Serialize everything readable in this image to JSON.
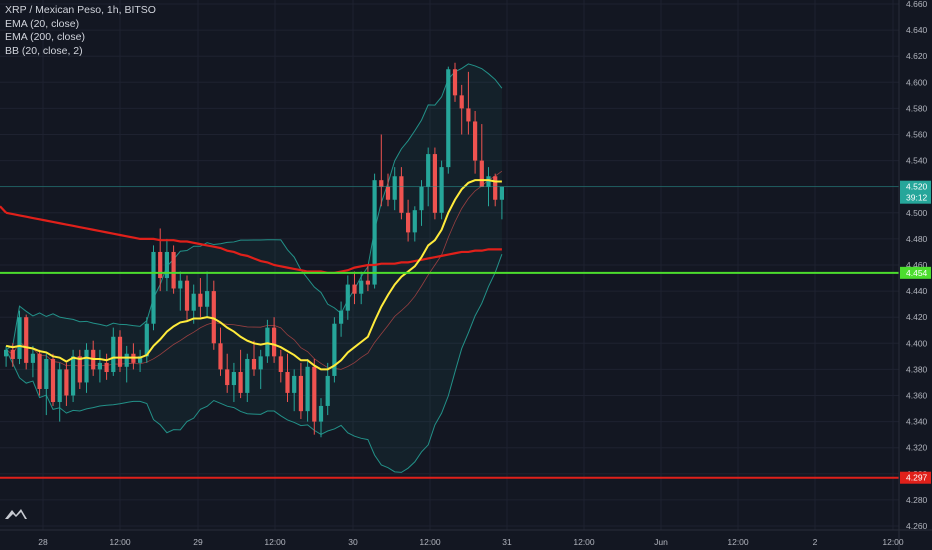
{
  "legend": {
    "symbol": "XRP / Mexican Peso, 1h, BITSO",
    "ema20": "EMA (20, close)",
    "ema200": "EMA (200, close)",
    "bb": "BB (20, close, 2)"
  },
  "colors": {
    "background": "#131722",
    "grid": "#1e2230",
    "up": "#26a69a",
    "down": "#ef5350",
    "ema20": "#ffeb3b",
    "ema200": "#e0201a",
    "bb": "#26a69a",
    "bbFill": "rgba(38,166,154,0.07)",
    "support": "#4cdd2e",
    "lower_level": "#e0201a",
    "axis_text": "#b2b5be",
    "last_price": "#26a69a"
  },
  "chart_data": {
    "type": "candlestick",
    "y_range": [
      4.26,
      4.66
    ],
    "y_ticks": [
      "4.660",
      "4.640",
      "4.620",
      "4.600",
      "4.580",
      "4.560",
      "4.540",
      "4.520",
      "4.500",
      "4.480",
      "4.460",
      "4.440",
      "4.420",
      "4.400",
      "4.380",
      "4.360",
      "4.340",
      "4.320",
      "4.300",
      "4.280",
      "4.260"
    ],
    "x_ticks": [
      "28",
      "12:00",
      "29",
      "12:00",
      "30",
      "12:00",
      "31",
      "12:00",
      "Jun",
      "12:00",
      "2",
      "12:00"
    ],
    "levels": [
      {
        "name": "support",
        "value": 4.454,
        "label": "4.454"
      },
      {
        "name": "lower-level",
        "value": 4.297,
        "label": "4.297"
      }
    ],
    "last_price": {
      "value": 4.52,
      "label": "4.520",
      "countdown": "39:12"
    },
    "candles": [
      [
        4.39,
        4.398,
        4.382,
        4.395
      ],
      [
        4.395,
        4.4,
        4.382,
        4.388
      ],
      [
        4.388,
        4.425,
        4.384,
        4.42
      ],
      [
        4.42,
        4.422,
        4.38,
        4.385
      ],
      [
        4.385,
        4.398,
        4.374,
        4.392
      ],
      [
        4.392,
        4.395,
        4.36,
        4.365
      ],
      [
        4.365,
        4.392,
        4.345,
        4.388
      ],
      [
        4.388,
        4.392,
        4.352,
        4.355
      ],
      [
        4.355,
        4.385,
        4.34,
        4.38
      ],
      [
        4.38,
        4.385,
        4.352,
        4.36
      ],
      [
        4.36,
        4.395,
        4.355,
        4.39
      ],
      [
        4.39,
        4.395,
        4.365,
        4.37
      ],
      [
        4.37,
        4.4,
        4.362,
        4.395
      ],
      [
        4.395,
        4.402,
        4.375,
        4.38
      ],
      [
        4.38,
        4.395,
        4.37,
        4.385
      ],
      [
        4.385,
        4.392,
        4.372,
        4.378
      ],
      [
        4.378,
        4.412,
        4.375,
        4.405
      ],
      [
        4.405,
        4.41,
        4.378,
        4.382
      ],
      [
        4.382,
        4.398,
        4.37,
        4.392
      ],
      [
        4.392,
        4.4,
        4.38,
        4.385
      ],
      [
        4.385,
        4.395,
        4.378,
        4.39
      ],
      [
        4.39,
        4.42,
        4.385,
        4.415
      ],
      [
        4.415,
        4.475,
        4.41,
        4.47
      ],
      [
        4.47,
        4.488,
        4.44,
        4.45
      ],
      [
        4.45,
        4.48,
        4.44,
        4.47
      ],
      [
        4.47,
        4.475,
        4.438,
        4.442
      ],
      [
        4.442,
        4.455,
        4.425,
        4.448
      ],
      [
        4.448,
        4.452,
        4.418,
        4.425
      ],
      [
        4.425,
        4.445,
        4.415,
        4.438
      ],
      [
        4.438,
        4.45,
        4.42,
        4.428
      ],
      [
        4.428,
        4.455,
        4.42,
        4.44
      ],
      [
        4.44,
        4.448,
        4.395,
        4.4
      ],
      [
        4.4,
        4.412,
        4.375,
        4.38
      ],
      [
        4.38,
        4.392,
        4.362,
        4.368
      ],
      [
        4.368,
        4.385,
        4.355,
        4.378
      ],
      [
        4.378,
        4.395,
        4.358,
        4.362
      ],
      [
        4.362,
        4.392,
        4.355,
        4.388
      ],
      [
        4.388,
        4.402,
        4.375,
        4.38
      ],
      [
        4.38,
        4.395,
        4.365,
        4.39
      ],
      [
        4.39,
        4.418,
        4.385,
        4.412
      ],
      [
        4.412,
        4.42,
        4.385,
        4.39
      ],
      [
        4.39,
        4.395,
        4.37,
        4.378
      ],
      [
        4.378,
        4.392,
        4.355,
        4.362
      ],
      [
        4.362,
        4.38,
        4.348,
        4.375
      ],
      [
        4.375,
        4.385,
        4.342,
        4.348
      ],
      [
        4.348,
        4.388,
        4.34,
        4.382
      ],
      [
        4.382,
        4.388,
        4.33,
        4.34
      ],
      [
        4.34,
        4.358,
        4.328,
        4.352
      ],
      [
        4.352,
        4.385,
        4.345,
        4.375
      ],
      [
        4.375,
        4.42,
        4.37,
        4.415
      ],
      [
        4.415,
        4.432,
        4.405,
        4.425
      ],
      [
        4.425,
        4.452,
        4.418,
        4.445
      ],
      [
        4.445,
        4.455,
        4.43,
        4.438
      ],
      [
        4.438,
        4.455,
        4.43,
        4.448
      ],
      [
        4.448,
        4.46,
        4.44,
        4.445
      ],
      [
        4.445,
        4.53,
        4.442,
        4.525
      ],
      [
        4.525,
        4.56,
        4.505,
        4.52
      ],
      [
        4.52,
        4.53,
        4.505,
        4.51
      ],
      [
        4.51,
        4.535,
        4.502,
        4.528
      ],
      [
        4.528,
        4.535,
        4.495,
        4.5
      ],
      [
        4.5,
        4.51,
        4.478,
        4.485
      ],
      [
        4.485,
        4.505,
        4.478,
        4.502
      ],
      [
        4.502,
        4.525,
        4.49,
        4.52
      ],
      [
        4.52,
        4.55,
        4.505,
        4.545
      ],
      [
        4.545,
        4.55,
        4.495,
        4.5
      ],
      [
        4.5,
        4.54,
        4.495,
        4.535
      ],
      [
        4.535,
        4.612,
        4.53,
        4.61
      ],
      [
        4.61,
        4.615,
        4.585,
        4.59
      ],
      [
        4.59,
        4.598,
        4.56,
        4.58
      ],
      [
        4.58,
        4.608,
        4.56,
        4.57
      ],
      [
        4.57,
        4.578,
        4.53,
        4.54
      ],
      [
        4.54,
        4.568,
        4.52,
        4.52
      ],
      [
        4.52,
        4.535,
        4.505,
        4.528
      ],
      [
        4.528,
        4.53,
        4.505,
        4.51
      ],
      [
        4.51,
        4.52,
        4.495,
        4.52
      ]
    ],
    "ema20": [
      4.398,
      4.397,
      4.398,
      4.397,
      4.396,
      4.394,
      4.393,
      4.39,
      4.389,
      4.386,
      4.389,
      4.388,
      4.389,
      4.388,
      4.388,
      4.387,
      4.389,
      4.389,
      4.389,
      4.389,
      4.389,
      4.391,
      4.398,
      4.403,
      4.409,
      4.413,
      4.416,
      4.417,
      4.419,
      4.419,
      4.42,
      4.419,
      4.416,
      4.412,
      4.409,
      4.405,
      4.402,
      4.4,
      4.399,
      4.4,
      4.399,
      4.397,
      4.394,
      4.391,
      4.387,
      4.387,
      4.383,
      4.38,
      4.38,
      4.383,
      4.387,
      4.393,
      4.397,
      4.401,
      4.405,
      4.417,
      4.428,
      4.437,
      4.445,
      4.451,
      4.455,
      4.459,
      4.466,
      4.475,
      4.479,
      4.487,
      4.5,
      4.51,
      4.518,
      4.523,
      4.525,
      4.525,
      4.525,
      4.524,
      4.524
    ],
    "ema200": [
      4.5,
      4.499,
      4.498,
      4.497,
      4.496,
      4.495,
      4.494,
      4.493,
      4.492,
      4.491,
      4.49,
      4.489,
      4.488,
      4.487,
      4.486,
      4.485,
      4.484,
      4.483,
      4.482,
      4.481,
      4.48,
      4.48,
      4.48,
      4.479,
      4.479,
      4.479,
      4.478,
      4.478,
      4.477,
      4.476,
      4.475,
      4.474,
      4.473,
      4.471,
      4.47,
      4.468,
      4.467,
      4.465,
      4.463,
      4.462,
      4.46,
      4.459,
      4.458,
      4.457,
      4.456,
      4.455,
      4.455,
      4.455,
      4.454,
      4.454,
      4.455,
      4.456,
      4.458,
      4.459,
      4.46,
      4.46,
      4.461,
      4.461,
      4.461,
      4.462,
      4.462,
      4.463,
      4.464,
      4.465,
      4.466,
      4.467,
      4.468,
      4.469,
      4.47,
      4.47,
      4.471,
      4.471,
      4.472,
      4.472,
      4.472
    ]
  }
}
